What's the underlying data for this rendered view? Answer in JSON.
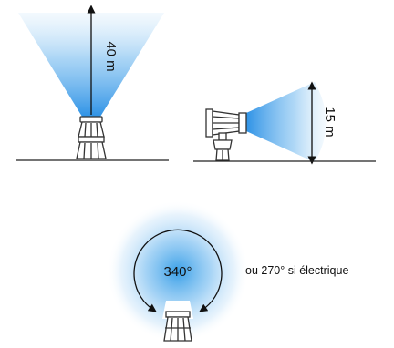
{
  "vertical_beam": {
    "height_label": "40 m"
  },
  "horizontal_beam": {
    "range_label": "15 m"
  },
  "rotation": {
    "angle_label": "340°",
    "alternative_note": "ou 270° si électrique"
  },
  "colors": {
    "beam": "#3aa0e8",
    "ground": "#222222",
    "lamp": "#333333"
  },
  "icons": [
    "searchlight-vertical-icon",
    "searchlight-horizontal-icon",
    "searchlight-rotation-icon"
  ]
}
